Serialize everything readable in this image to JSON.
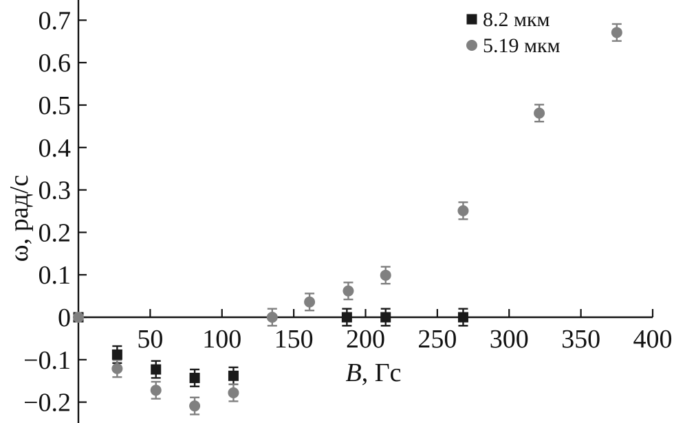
{
  "chart_data": {
    "type": "scatter",
    "xlabel_var": "B",
    "xlabel_unit": ", Гс",
    "ylabel": "ω, рад/с",
    "xlim": [
      0,
      400
    ],
    "ylim": [
      -0.24,
      0.76
    ],
    "x_ticks": [
      50,
      100,
      150,
      200,
      250,
      300,
      350,
      400
    ],
    "y_ticks": [
      -0.2,
      -0.1,
      0,
      0.1,
      0.2,
      0.3,
      0.4,
      0.5,
      0.6,
      0.7
    ],
    "x_tick_labels": [
      "50",
      "100",
      "150",
      "200",
      "250",
      "300",
      "350",
      "400"
    ],
    "y_tick_labels": [
      "−0.2",
      "−0.1",
      "0",
      "0.1",
      "0.2",
      "0.3",
      "0.4",
      "0.5",
      "0.6",
      "0.7"
    ],
    "grid": false,
    "legend_position": "top-right",
    "series": [
      {
        "name": "8.2 мкм",
        "marker": "square",
        "color": "#1a1a1a",
        "x": [
          0,
          27,
          54,
          81,
          108,
          187,
          214,
          268
        ],
        "y": [
          0,
          -0.088,
          -0.123,
          -0.143,
          -0.138,
          0,
          0,
          0
        ],
        "yerr": [
          0,
          0.02,
          0.02,
          0.02,
          0.02,
          0.02,
          0.02,
          0.02
        ]
      },
      {
        "name": "5.19 мкм",
        "marker": "circle",
        "color": "#808080",
        "x": [
          0,
          27,
          54,
          81,
          108,
          135,
          161,
          188,
          214,
          268,
          321,
          375
        ],
        "y": [
          0,
          -0.121,
          -0.172,
          -0.209,
          -0.178,
          0,
          0.036,
          0.062,
          0.099,
          0.251,
          0.481,
          0.671
        ],
        "yerr": [
          0,
          0.02,
          0.02,
          0.02,
          0.02,
          0.02,
          0.02,
          0.02,
          0.02,
          0.02,
          0.02,
          0.02
        ]
      }
    ]
  }
}
